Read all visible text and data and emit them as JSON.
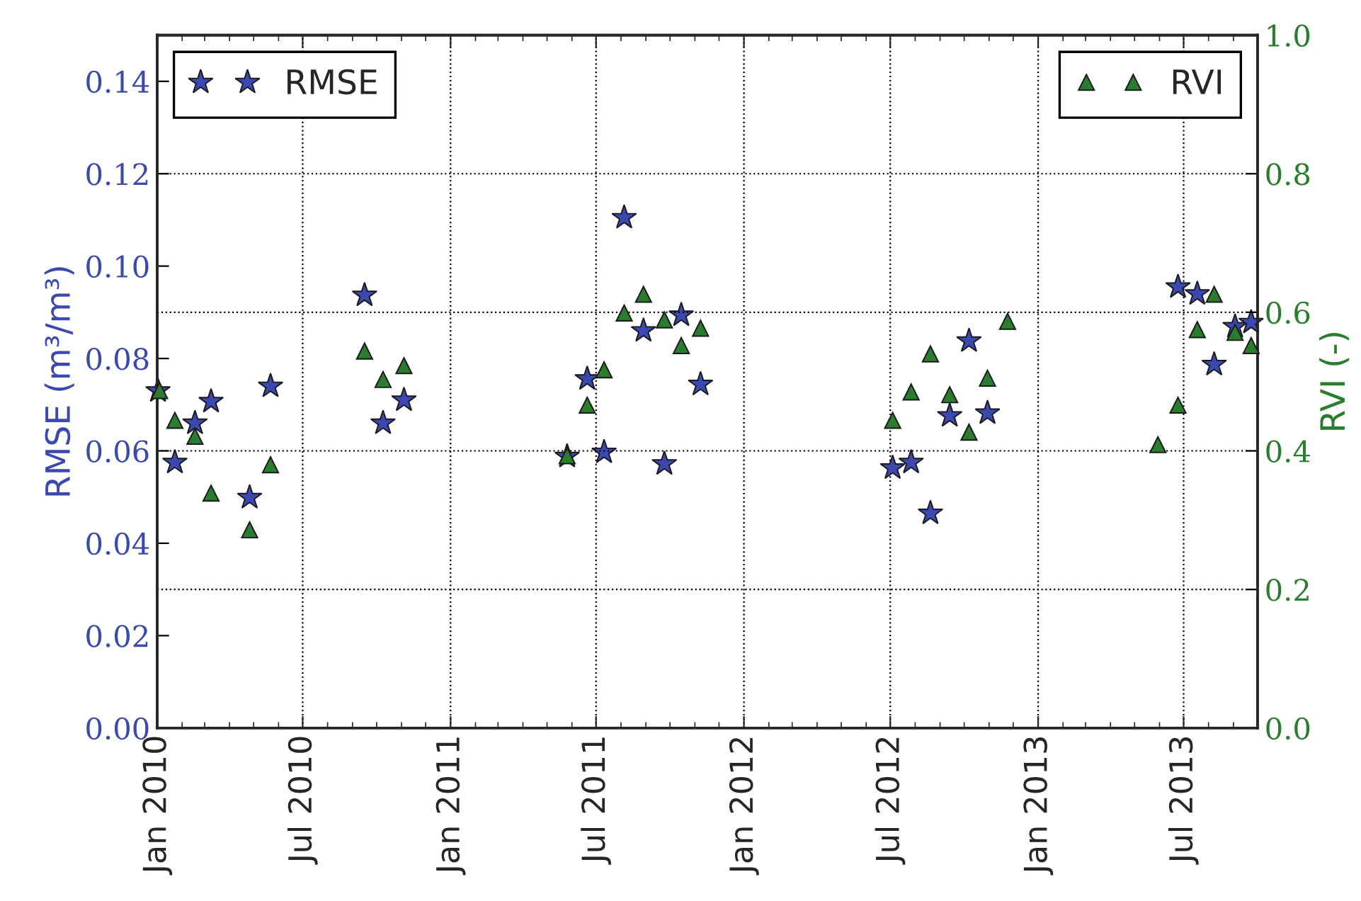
{
  "chart_data": {
    "type": "scatter",
    "ylabel": "RMSE (m³/m³)",
    "y2label": "RVI (-)",
    "xlim": [
      "2010-01-01",
      "2013-10-01"
    ],
    "ylim": [
      0,
      0.15
    ],
    "y2lim": [
      0,
      1.0
    ],
    "xticks": [
      {
        "value": "2010-01-01",
        "label": "Jan 2010"
      },
      {
        "value": "2010-07-01",
        "label": "Jul 2010"
      },
      {
        "value": "2011-01-01",
        "label": "Jan 2011"
      },
      {
        "value": "2011-07-01",
        "label": "Jul 2011"
      },
      {
        "value": "2012-01-01",
        "label": "Jan 2012"
      },
      {
        "value": "2012-07-01",
        "label": "Jul 2012"
      },
      {
        "value": "2013-01-01",
        "label": "Jan 2013"
      },
      {
        "value": "2013-07-01",
        "label": "Jul 2013"
      }
    ],
    "yticks": [
      {
        "value": 0,
        "label": "0.00"
      },
      {
        "value": 0.02,
        "label": "0.02"
      },
      {
        "value": 0.04,
        "label": "0.04"
      },
      {
        "value": 0.06,
        "label": "0.06"
      },
      {
        "value": 0.08,
        "label": "0.08"
      },
      {
        "value": 0.1,
        "label": "0.10"
      },
      {
        "value": 0.12,
        "label": "0.12"
      },
      {
        "value": 0.14,
        "label": "0.14"
      }
    ],
    "y2ticks": [
      {
        "value": 0,
        "label": "0.0"
      },
      {
        "value": 0.2,
        "label": "0.2"
      },
      {
        "value": 0.4,
        "label": "0.4"
      },
      {
        "value": 0.6,
        "label": "0.6"
      },
      {
        "value": 0.8,
        "label": "0.8"
      },
      {
        "value": 1.0,
        "label": "1.0"
      }
    ],
    "grid": true,
    "legend": "top",
    "series": [
      {
        "name": "RMSE",
        "color": "#3a48b0",
        "marker": "star",
        "x": [
          "2010-01-02",
          "2010-01-23",
          "2010-02-17",
          "2010-03-09",
          "2010-04-26",
          "2010-05-22",
          "2010-09-16",
          "2010-10-09",
          "2010-11-04",
          "2011-05-26",
          "2011-06-20",
          "2011-07-11",
          "2011-08-05",
          "2011-08-29",
          "2011-09-24",
          "2011-10-15",
          "2011-11-08",
          "2012-07-04",
          "2012-07-27",
          "2012-08-20",
          "2012-09-13",
          "2012-10-07",
          "2012-10-30",
          "2013-06-24",
          "2013-07-18",
          "2013-08-08",
          "2013-09-03",
          "2013-09-23"
        ],
        "values": [
          0.073,
          0.0575,
          0.066,
          0.0707,
          0.0499,
          0.074,
          0.0937,
          0.066,
          0.071,
          0.0588,
          0.0756,
          0.0597,
          0.1105,
          0.086,
          0.0572,
          0.0894,
          0.0744,
          0.0563,
          0.0575,
          0.0465,
          0.0676,
          0.0838,
          0.0682,
          0.0955,
          0.094,
          0.0787,
          0.0869,
          0.0878
        ]
      },
      {
        "name": "RVI",
        "color": "#2a7d2e",
        "marker": "triangle",
        "axis": "y2",
        "x": [
          "2010-01-04",
          "2010-01-23",
          "2010-02-17",
          "2010-03-09",
          "2010-04-26",
          "2010-05-22",
          "2010-09-16",
          "2010-10-09",
          "2010-11-04",
          "2011-05-26",
          "2011-06-20",
          "2011-07-11",
          "2011-08-05",
          "2011-08-29",
          "2011-09-24",
          "2011-10-15",
          "2011-11-08",
          "2012-07-04",
          "2012-07-27",
          "2012-08-20",
          "2012-09-13",
          "2012-10-07",
          "2012-10-30",
          "2012-11-24",
          "2013-05-30",
          "2013-06-24",
          "2013-07-18",
          "2013-08-08",
          "2013-09-03",
          "2013-09-23"
        ],
        "values": [
          0.487,
          0.444,
          0.421,
          0.339,
          0.286,
          0.38,
          0.544,
          0.503,
          0.523,
          0.393,
          0.466,
          0.517,
          0.599,
          0.626,
          0.589,
          0.552,
          0.577,
          0.444,
          0.485,
          0.54,
          0.481,
          0.427,
          0.505,
          0.587,
          0.409,
          0.466,
          0.575,
          0.626,
          0.571,
          0.552
        ]
      }
    ]
  }
}
